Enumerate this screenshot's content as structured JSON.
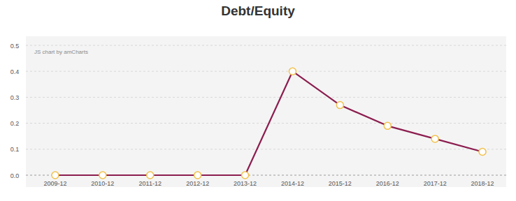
{
  "chart_data": {
    "type": "line",
    "title": "Debt/Equity",
    "annotations": [
      "JS chart by amCharts"
    ],
    "categories": [
      "2009-12",
      "2010-12",
      "2011-12",
      "2012-12",
      "2013-12",
      "2014-12",
      "2015-12",
      "2016-12",
      "2017-12",
      "2018-12"
    ],
    "values": [
      0,
      0,
      0,
      0,
      0,
      0.4,
      0.27,
      0.19,
      0.14,
      0.09
    ],
    "color": "#8c1d4f",
    "marker": "circle",
    "ylim": [
      0,
      0.5
    ],
    "yticks": [
      {
        "value": 0,
        "label": "0.0"
      },
      0.1,
      0.2,
      0.3,
      0.4,
      0.5
    ],
    "grid": true
  }
}
